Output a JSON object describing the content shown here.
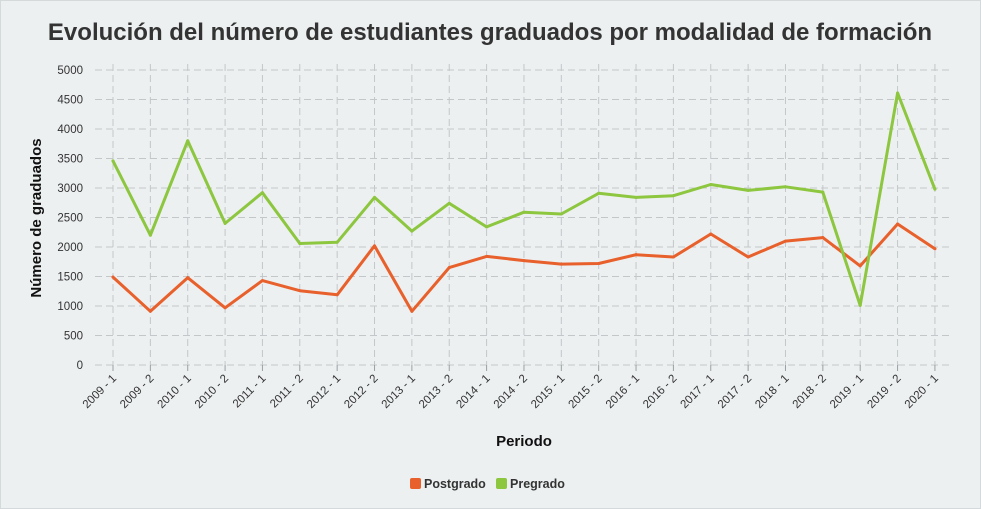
{
  "chart_data": {
    "type": "line",
    "title": "Evolución del número de estudiantes graduados por modalidad de formación",
    "xlabel": "Periodo",
    "ylabel": "Número de graduados",
    "ylim": [
      0,
      5000
    ],
    "yticks": [
      "0",
      "500",
      "1000",
      "1500",
      "2000",
      "2500",
      "3000",
      "3500",
      "4000",
      "4500",
      "5000"
    ],
    "grid": true,
    "legend_position": "bottom-center",
    "categories": [
      "2009 - 1",
      "2009 - 2",
      "2010 - 1",
      "2010 - 2",
      "2011 - 1",
      "2011 - 2",
      "2012 - 1",
      "2012 - 2",
      "2013 - 1",
      "2013 - 2",
      "2014 - 1",
      "2014 - 2",
      "2015 - 1",
      "2015 - 2",
      "2016 - 1",
      "2016 - 2",
      "2017 - 1",
      "2017 - 2",
      "2018 - 1",
      "2018 - 2",
      "2019 - 1",
      "2019 - 2",
      "2020 - 1"
    ],
    "series": [
      {
        "name": "Postgrado",
        "color": "#e8612c",
        "values": [
          1490,
          910,
          1480,
          970,
          1430,
          1260,
          1190,
          2020,
          910,
          1650,
          1840,
          1770,
          1710,
          1720,
          1870,
          1830,
          2220,
          1830,
          2100,
          2160,
          1680,
          2390,
          1970
        ]
      },
      {
        "name": "Pregrado",
        "color": "#8dc63f",
        "values": [
          3460,
          2200,
          3800,
          2400,
          2920,
          2060,
          2080,
          2840,
          2270,
          2740,
          2340,
          2590,
          2560,
          2910,
          2840,
          2870,
          3060,
          2960,
          3020,
          2930,
          1010,
          4610,
          2980
        ]
      }
    ]
  }
}
